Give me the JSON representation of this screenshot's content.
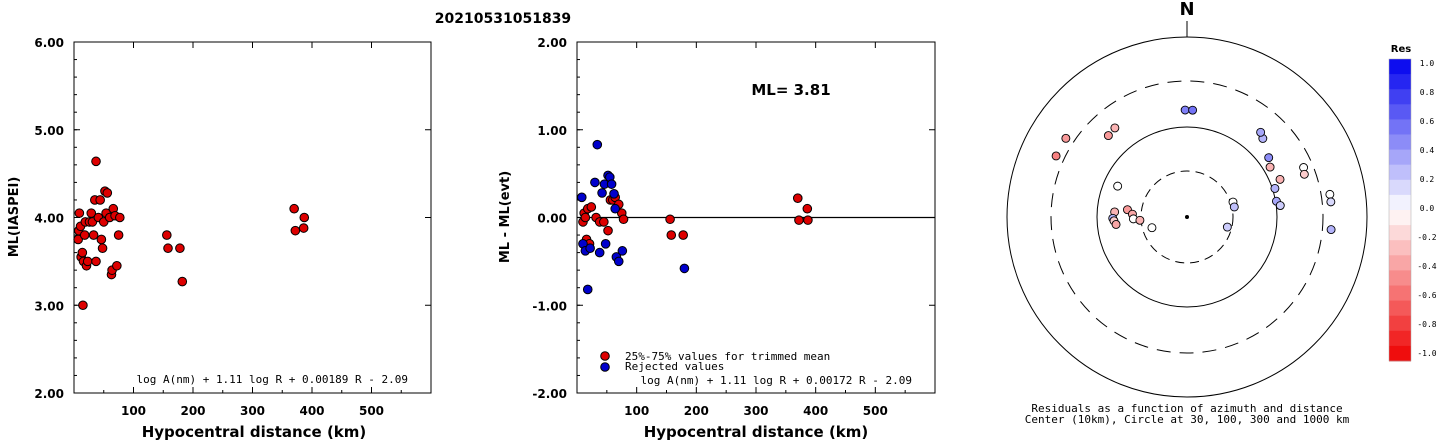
{
  "title": "20210531051839",
  "chart_data": [
    {
      "type": "scatter",
      "name": "ml-vs-distance",
      "ylabel": "ML(IASPEI)",
      "xlabel": "Hypocentral distance (km)",
      "xlim": [
        0,
        600
      ],
      "ylim": [
        2.0,
        6.0
      ],
      "x_ticks": [
        "100",
        "200",
        "300",
        "400",
        "500"
      ],
      "y_ticks": [
        "2.00",
        "3.00",
        "4.00",
        "5.00",
        "6.00"
      ],
      "formula": "log A(nm) + 1.11 log R + 0.00189 R - 2.09",
      "marker_color": "#dd0000",
      "series": [
        {
          "points": [
            [
              7,
              3.75
            ],
            [
              8,
              3.85
            ],
            [
              9,
              4.05
            ],
            [
              11,
              3.9
            ],
            [
              12,
              3.55
            ],
            [
              14,
              3.6
            ],
            [
              15,
              3.0
            ],
            [
              16,
              3.5
            ],
            [
              18,
              3.8
            ],
            [
              19,
              3.95
            ],
            [
              21,
              3.45
            ],
            [
              23,
              3.5
            ],
            [
              26,
              3.95
            ],
            [
              29,
              4.05
            ],
            [
              31,
              3.95
            ],
            [
              33,
              3.8
            ],
            [
              35,
              4.2
            ],
            [
              37,
              3.5
            ],
            [
              37,
              4.64
            ],
            [
              41,
              4.0
            ],
            [
              44,
              4.2
            ],
            [
              46,
              3.75
            ],
            [
              48,
              3.65
            ],
            [
              50,
              3.95
            ],
            [
              52,
              4.3
            ],
            [
              54,
              4.05
            ],
            [
              56,
              4.28
            ],
            [
              60,
              4.0
            ],
            [
              63,
              3.35
            ],
            [
              64,
              3.4
            ],
            [
              66,
              4.1
            ],
            [
              69,
              4.02
            ],
            [
              72,
              3.45
            ],
            [
              75,
              3.8
            ],
            [
              77,
              4.0
            ],
            [
              156,
              3.8
            ],
            [
              158,
              3.65
            ],
            [
              178,
              3.65
            ],
            [
              182,
              3.27
            ],
            [
              370,
              4.1
            ],
            [
              372,
              3.85
            ],
            [
              386,
              3.88
            ],
            [
              387,
              4.0
            ]
          ]
        }
      ]
    },
    {
      "type": "scatter",
      "name": "residual-vs-distance",
      "ylabel": "ML - ML(evt)",
      "xlabel": "Hypocentral distance (km)",
      "xlim": [
        0,
        600
      ],
      "ylim": [
        -2.0,
        2.0
      ],
      "x_ticks": [
        "100",
        "200",
        "300",
        "400",
        "500"
      ],
      "y_ticks": [
        "-2.00",
        "-1.00",
        "0.00",
        "1.00",
        "2.00"
      ],
      "annotation": "ML= 3.81",
      "formula": "log A(nm) + 1.11 log R + 0.00172 R - 2.09",
      "legend": [
        "25%-75% values for trimmed mean",
        "Rejected values"
      ],
      "series": [
        {
          "name": "25%-75% values for trimmed mean",
          "color": "#dd0000",
          "points": [
            [
              10,
              -0.05
            ],
            [
              12,
              0.05
            ],
            [
              14,
              0.0
            ],
            [
              16,
              -0.25
            ],
            [
              18,
              0.1
            ],
            [
              21,
              -0.3
            ],
            [
              24,
              0.12
            ],
            [
              32,
              0.0
            ],
            [
              38,
              -0.05
            ],
            [
              45,
              -0.05
            ],
            [
              52,
              -0.15
            ],
            [
              56,
              0.2
            ],
            [
              60,
              0.2
            ],
            [
              64,
              0.23
            ],
            [
              70,
              0.15
            ],
            [
              75,
              0.05
            ],
            [
              78,
              -0.02
            ],
            [
              156,
              -0.02
            ],
            [
              158,
              -0.2
            ],
            [
              178,
              -0.2
            ],
            [
              370,
              0.22
            ],
            [
              372,
              -0.03
            ],
            [
              386,
              0.1
            ],
            [
              387,
              -0.03
            ]
          ]
        },
        {
          "name": "Rejected values",
          "color": "#0000cc",
          "points": [
            [
              8,
              0.23
            ],
            [
              10,
              -0.3
            ],
            [
              14,
              -0.38
            ],
            [
              18,
              -0.82
            ],
            [
              22,
              -0.35
            ],
            [
              30,
              0.4
            ],
            [
              34,
              0.83
            ],
            [
              38,
              -0.4
            ],
            [
              42,
              0.28
            ],
            [
              46,
              0.38
            ],
            [
              48,
              -0.3
            ],
            [
              52,
              0.48
            ],
            [
              55,
              0.46
            ],
            [
              58,
              0.38
            ],
            [
              62,
              0.27
            ],
            [
              64,
              0.1
            ],
            [
              66,
              -0.45
            ],
            [
              70,
              -0.5
            ],
            [
              76,
              -0.38
            ],
            [
              180,
              -0.58
            ]
          ]
        }
      ]
    },
    {
      "type": "scatter",
      "name": "residual-azimuth-map",
      "north_label": "N",
      "caption": [
        "Residuals as a function of azimuth and distance",
        "Center (10km), Circle at 30, 100, 300 and 1000 km"
      ],
      "colorbar": {
        "title": "Res",
        "labels": [
          "1.0",
          "0.8",
          "0.6",
          "0.4",
          "0.2",
          "0.0",
          "-0.2",
          "-0.4",
          "-0.6",
          "-0.8",
          "-1.0"
        ],
        "positive_color": "#0000ee",
        "negative_color": "#ee0000"
      },
      "points": [
        {
          "azimuth": 303,
          "distance": 378,
          "res": -0.4
        },
        {
          "azimuth": 295,
          "distance": 378,
          "res": -0.5
        },
        {
          "azimuth": 321,
          "distance": 180,
          "res": -0.3
        },
        {
          "azimuth": 316,
          "distance": 174,
          "res": -0.4
        },
        {
          "azimuth": 294,
          "distance": 68,
          "res": 0.0
        },
        {
          "azimuth": 274,
          "distance": 62,
          "res": -0.3
        },
        {
          "azimuth": 269,
          "distance": 65,
          "res": 0.3
        },
        {
          "azimuth": 267,
          "distance": 63,
          "res": -0.2
        },
        {
          "azimuth": 264,
          "distance": 60,
          "res": -0.35
        },
        {
          "azimuth": 277,
          "distance": 44,
          "res": -0.4
        },
        {
          "azimuth": 273,
          "distance": 38,
          "res": -0.35
        },
        {
          "azimuth": 268,
          "distance": 37,
          "res": 0.0
        },
        {
          "azimuth": 266,
          "distance": 31,
          "res": -0.3
        },
        {
          "azimuth": 253,
          "distance": 24,
          "res": 0.0
        },
        {
          "azimuth": 359,
          "distance": 150,
          "res": 0.5
        },
        {
          "azimuth": 3,
          "distance": 150,
          "res": 0.55
        },
        {
          "azimuth": 44,
          "distance": 158,
          "res": 0.3
        },
        {
          "azimuth": 41,
          "distance": 170,
          "res": 0.35
        },
        {
          "azimuth": 54,
          "distance": 130,
          "res": 0.45
        },
        {
          "azimuth": 59,
          "distance": 118,
          "res": -0.3
        },
        {
          "azimuth": 68,
          "distance": 128,
          "res": -0.3
        },
        {
          "azimuth": 72,
          "distance": 106,
          "res": 0.3
        },
        {
          "azimuth": 80,
          "distance": 102,
          "res": 0.35
        },
        {
          "azimuth": 83,
          "distance": 110,
          "res": 0.2
        },
        {
          "azimuth": 67,
          "distance": 240,
          "res": 0.0
        },
        {
          "azimuth": 70,
          "distance": 230,
          "res": -0.2
        },
        {
          "azimuth": 81,
          "distance": 380,
          "res": 0.0
        },
        {
          "azimuth": 84,
          "distance": 380,
          "res": 0.15
        },
        {
          "azimuth": 95,
          "distance": 380,
          "res": 0.3
        },
        {
          "azimuth": 72,
          "distance": 32,
          "res": 0.0
        },
        {
          "azimuth": 78,
          "distance": 32,
          "res": 0.25
        },
        {
          "azimuth": 104,
          "distance": 27,
          "res": 0.2
        }
      ]
    }
  ]
}
